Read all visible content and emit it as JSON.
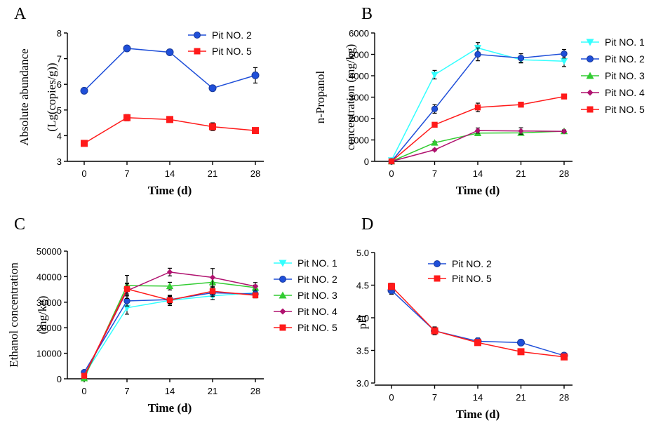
{
  "colors": {
    "pit1": "#33ffff",
    "pit2": "#1f4fd9",
    "pit3": "#33cc33",
    "pit4": "#b0126f",
    "pit5": "#ff1a1a"
  },
  "chart_data": [
    {
      "panel": "A",
      "type": "line",
      "x": [
        0,
        7,
        14,
        21,
        28
      ],
      "xticks": [
        "0",
        "7",
        "14",
        "21",
        "28"
      ],
      "xlabel": "Time (d)",
      "ylabel": [
        "Absolute abundance",
        "(Lg(copies/g))"
      ],
      "ylim": [
        3,
        8
      ],
      "yticks": [
        "3",
        "4",
        "5",
        "6",
        "7",
        "8"
      ],
      "legend": "top-right",
      "series": [
        {
          "name": "Pit NO. 2",
          "color_key": "pit2",
          "marker": "circle",
          "values": [
            5.75,
            7.4,
            7.25,
            5.85,
            6.35
          ],
          "errors": [
            0.05,
            0.05,
            0.08,
            0.1,
            0.3
          ]
        },
        {
          "name": "Pit NO. 5",
          "color_key": "pit5",
          "marker": "square",
          "values": [
            3.7,
            4.7,
            4.63,
            4.35,
            4.2
          ],
          "errors": [
            0.1,
            0.12,
            0.05,
            0.15,
            0.05
          ]
        }
      ]
    },
    {
      "panel": "B",
      "type": "line",
      "x": [
        0,
        7,
        14,
        21,
        28
      ],
      "xticks": [
        "0",
        "7",
        "14",
        "21",
        "28"
      ],
      "xlabel": "Time (d)",
      "ylabel": [
        "n-Propanol",
        "concentration (mg/kg)"
      ],
      "ylim": [
        0,
        6000
      ],
      "yticks": [
        "0",
        "1000",
        "2000",
        "3000",
        "4000",
        "5000",
        "6000"
      ],
      "legend": "right",
      "series": [
        {
          "name": "Pit NO. 1",
          "color_key": "pit1",
          "marker": "triangle-down",
          "values": [
            50,
            4050,
            5300,
            4750,
            4680
          ],
          "errors": [
            30,
            200,
            250,
            150,
            250
          ]
        },
        {
          "name": "Pit NO. 2",
          "color_key": "pit2",
          "marker": "circle",
          "values": [
            0,
            2450,
            5000,
            4830,
            5030
          ],
          "errors": [
            30,
            200,
            300,
            200,
            200
          ]
        },
        {
          "name": "Pit NO. 3",
          "color_key": "pit3",
          "marker": "triangle-up",
          "values": [
            0,
            870,
            1320,
            1330,
            1410
          ],
          "errors": [
            20,
            50,
            100,
            80,
            60
          ]
        },
        {
          "name": "Pit NO. 4",
          "color_key": "pit4",
          "marker": "diamond",
          "values": [
            0,
            540,
            1440,
            1420,
            1400
          ],
          "errors": [
            20,
            40,
            120,
            150,
            60
          ]
        },
        {
          "name": "Pit NO. 5",
          "color_key": "pit5",
          "marker": "square",
          "values": [
            0,
            1710,
            2520,
            2650,
            3030
          ],
          "errors": [
            20,
            60,
            200,
            80,
            60
          ]
        }
      ]
    },
    {
      "panel": "C",
      "type": "line",
      "x": [
        0,
        7,
        14,
        21,
        28
      ],
      "xticks": [
        "0",
        "7",
        "14",
        "21",
        "28"
      ],
      "xlabel": "Time (d)",
      "ylabel": [
        "Ethanol concentration",
        "(mg/kg)"
      ],
      "ylim": [
        0,
        50000
      ],
      "yticks": [
        "0",
        "10000",
        "20000",
        "30000",
        "40000",
        "50000"
      ],
      "legend": "right",
      "series": [
        {
          "name": "Pit NO. 1",
          "color_key": "pit1",
          "marker": "triangle-down",
          "values": [
            1500,
            27800,
            30700,
            32500,
            33700
          ],
          "errors": [
            500,
            2500,
            2000,
            1500,
            1000
          ]
        },
        {
          "name": "Pit NO. 2",
          "color_key": "pit2",
          "marker": "circle",
          "values": [
            2600,
            30500,
            31000,
            33700,
            33200
          ],
          "errors": [
            500,
            2000,
            1500,
            1500,
            1000
          ]
        },
        {
          "name": "Pit NO. 3",
          "color_key": "pit3",
          "marker": "triangle-up",
          "values": [
            200,
            36500,
            36300,
            37800,
            35700
          ],
          "errors": [
            300,
            4000,
            1500,
            2000,
            1000
          ]
        },
        {
          "name": "Pit NO. 4",
          "color_key": "pit4",
          "marker": "diamond",
          "values": [
            1000,
            34500,
            41800,
            39700,
            36200
          ],
          "errors": [
            300,
            3000,
            1500,
            3500,
            1500
          ]
        },
        {
          "name": "Pit NO. 5",
          "color_key": "pit5",
          "marker": "square",
          "values": [
            1200,
            35200,
            30800,
            34300,
            32700
          ],
          "errors": [
            300,
            2000,
            1500,
            1500,
            1000
          ]
        }
      ]
    },
    {
      "panel": "D",
      "type": "line",
      "x": [
        0,
        7,
        14,
        21,
        28
      ],
      "xticks": [
        "0",
        "7",
        "14",
        "21",
        "28"
      ],
      "xlabel": "Time (d)",
      "ylabel": [
        "pH"
      ],
      "ylim": [
        3.0,
        5.0
      ],
      "yticks": [
        "3.0",
        "3.5",
        "4.0",
        "4.5",
        "5.0"
      ],
      "legend": "top-right",
      "series": [
        {
          "name": "Pit NO. 2",
          "color_key": "pit2",
          "marker": "circle",
          "values": [
            4.42,
            3.8,
            3.64,
            3.62,
            3.42
          ],
          "errors": [
            0.06,
            0.06,
            0.05,
            0.04,
            0.03
          ]
        },
        {
          "name": "Pit NO. 5",
          "color_key": "pit5",
          "marker": "square",
          "values": [
            4.48,
            3.8,
            3.62,
            3.48,
            3.4
          ],
          "errors": [
            0.05,
            0.05,
            0.03,
            0.02,
            0.02
          ]
        }
      ]
    }
  ]
}
